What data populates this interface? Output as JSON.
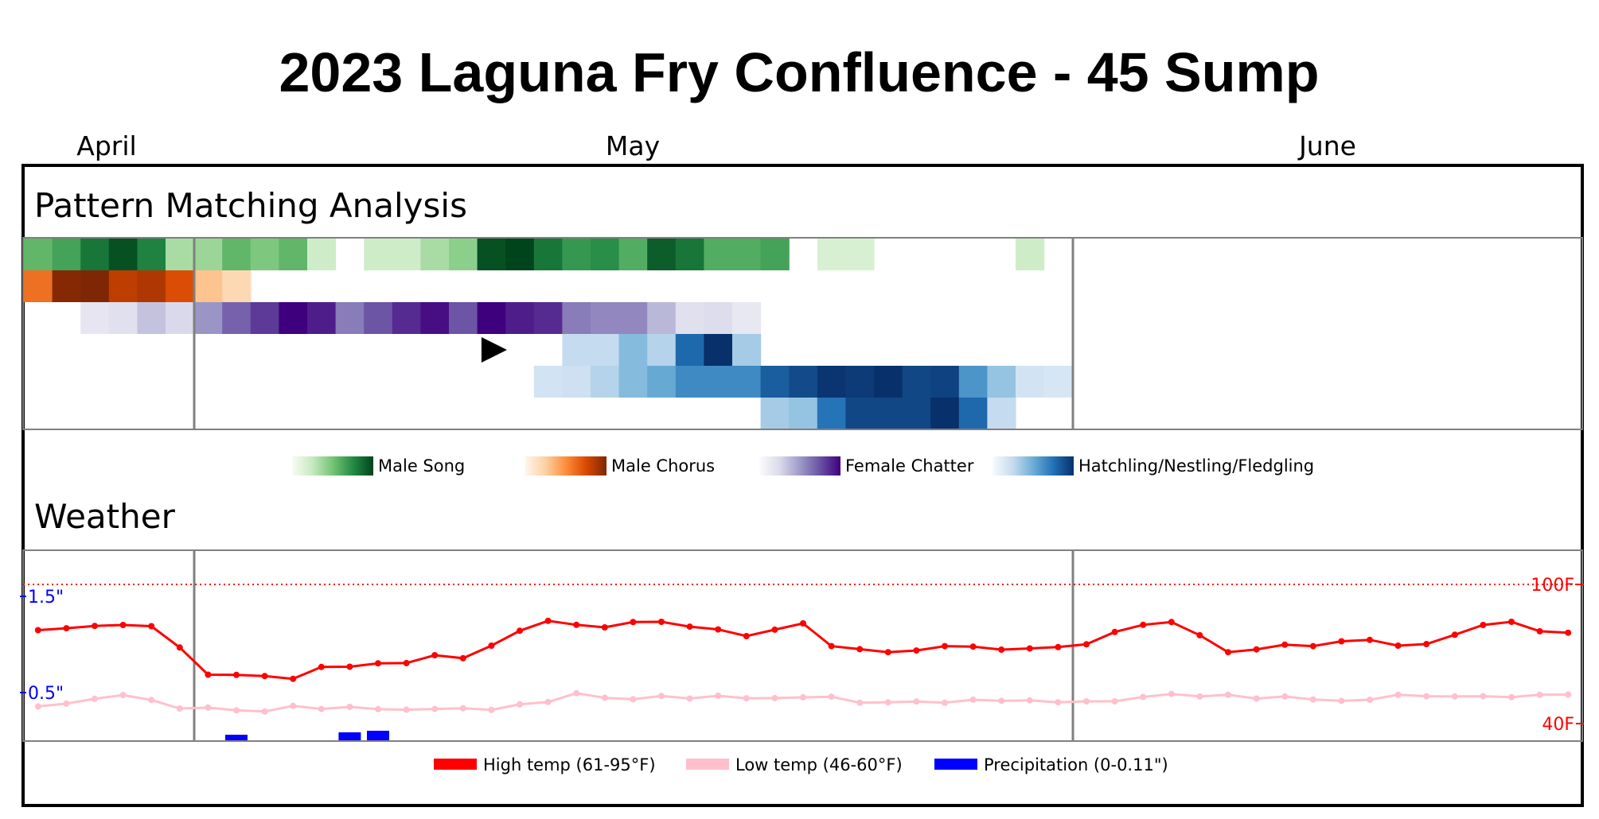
{
  "chart_data": {
    "type": "heatmap",
    "title": "2023 Laguna Fry Confluence - 45 Sump",
    "months": [
      "April",
      "May",
      "June"
    ],
    "x_dates": [
      "2023-04-25",
      "2023-06-18"
    ],
    "pattern_section_title": "Pattern Matching Analysis",
    "pattern_series": [
      {
        "name": "Male Song",
        "colormap": "Greens",
        "cmap": [
          "#f7fcf5",
          "#c7e9c0",
          "#74c476",
          "#238b45",
          "#00441b"
        ],
        "values": [
          0.5,
          0.6,
          0.8,
          0.95,
          0.75,
          0.25,
          0.3,
          0.5,
          0.4,
          0.5,
          0.1,
          0,
          0.1,
          0.1,
          0.25,
          0.35,
          0.95,
          1,
          0.8,
          0.65,
          0.7,
          0.55,
          0.9,
          0.8,
          0.55,
          0.55,
          0.6,
          0,
          0.05,
          0.05,
          0,
          0,
          0,
          0,
          0,
          0.1,
          0,
          0,
          0,
          0,
          0,
          0,
          0,
          0,
          0,
          0,
          0,
          0,
          0,
          0,
          0,
          0,
          0,
          0,
          0
        ]
      },
      {
        "name": "Male Chorus",
        "colormap": "Oranges",
        "cmap": [
          "#fff5eb",
          "#fdd0a2",
          "#fd8d3c",
          "#d94801",
          "#7f2704"
        ],
        "values": [
          0.55,
          0.98,
          1,
          0.8,
          0.85,
          0.7,
          0.2,
          0.08,
          0,
          0,
          0,
          0,
          0,
          0,
          0,
          0,
          0,
          0,
          0,
          0,
          0,
          0,
          0,
          0,
          0,
          0,
          0,
          0,
          0,
          0,
          0,
          0,
          0,
          0,
          0,
          0,
          0,
          0,
          0,
          0,
          0,
          0,
          0,
          0,
          0,
          0,
          0,
          0,
          0,
          0,
          0,
          0,
          0,
          0,
          0
        ]
      },
      {
        "name": "Female Chatter",
        "colormap": "Purples",
        "cmap": [
          "#fcfbfd",
          "#dadaeb",
          "#9e9ac8",
          "#6a51a3",
          "#3f007d"
        ],
        "values": [
          0,
          0,
          0.05,
          0.1,
          0.25,
          0.15,
          0.45,
          0.65,
          0.8,
          1,
          0.9,
          0.55,
          0.7,
          0.85,
          0.95,
          0.7,
          1,
          0.9,
          0.85,
          0.55,
          0.5,
          0.5,
          0.3,
          0.1,
          0.12,
          0.03,
          0,
          0,
          0,
          0,
          0,
          0,
          0,
          0,
          0,
          0,
          0,
          0,
          0,
          0,
          0,
          0,
          0,
          0,
          0,
          0,
          0,
          0,
          0,
          0,
          0,
          0,
          0,
          0,
          0
        ]
      },
      {
        "name": "Hatchling/Nestling/Fledgling",
        "colormap": "Blues",
        "cmap": [
          "#f7fbff",
          "#c6dbef",
          "#6baed6",
          "#2171b5",
          "#08306b"
        ],
        "rows": [
          [
            0,
            0,
            0,
            0,
            0,
            0,
            0,
            0,
            0,
            0,
            0,
            0,
            0,
            0,
            0,
            0,
            0,
            0,
            0,
            0.15,
            0.15,
            0.35,
            0.2,
            0.75,
            1,
            0.25,
            0,
            0,
            0,
            0,
            0,
            0,
            0,
            0,
            0,
            0,
            0,
            0,
            0,
            0,
            0,
            0,
            0,
            0,
            0,
            0,
            0,
            0,
            0,
            0,
            0,
            0,
            0,
            0,
            0
          ],
          [
            0,
            0,
            0,
            0,
            0,
            0,
            0,
            0,
            0,
            0,
            0,
            0,
            0,
            0,
            0,
            0,
            0,
            0,
            0.08,
            0.1,
            0.2,
            0.35,
            0.45,
            0.6,
            0.6,
            0.6,
            0.8,
            0.88,
            0.98,
            0.95,
            1,
            0.9,
            0.92,
            0.55,
            0.3,
            0.08,
            0.05,
            0,
            0,
            0,
            0,
            0,
            0,
            0,
            0,
            0,
            0,
            0,
            0,
            0,
            0,
            0,
            0,
            0,
            0
          ],
          [
            0,
            0,
            0,
            0,
            0,
            0,
            0,
            0,
            0,
            0,
            0,
            0,
            0,
            0,
            0,
            0,
            0,
            0,
            0,
            0,
            0,
            0,
            0,
            0,
            0,
            0,
            0.25,
            0.3,
            0.7,
            0.9,
            0.9,
            0.9,
            1,
            0.75,
            0.15,
            0,
            0,
            0,
            0,
            0,
            0,
            0,
            0,
            0,
            0,
            0,
            0,
            0,
            0,
            0,
            0,
            0,
            0,
            0,
            0
          ]
        ]
      }
    ],
    "marker_day_index": 16,
    "weather_section_title": "Weather",
    "temp_ylim": [
      40,
      100
    ],
    "temp_labels": [
      "100F",
      "40F"
    ],
    "precip_labels": [
      "1.5\"",
      "0.5\""
    ],
    "precip_reference": [
      1.5,
      0.5
    ],
    "high_temp": [
      80.3,
      81.1,
      82.1,
      82.5,
      82.0,
      72.8,
      61.1,
      61.0,
      60.5,
      59.3,
      64.4,
      64.5,
      66.0,
      66.1,
      69.5,
      68.2,
      73.6,
      80.0,
      84.3,
      82.6,
      81.5,
      83.8,
      83.9,
      81.8,
      80.6,
      77.7,
      80.5,
      83.2,
      73.4,
      72.1,
      70.8,
      71.5,
      73.4,
      73.2,
      71.9,
      72.4,
      73.0,
      74.2,
      79.5,
      82.6,
      83.8,
      78.1,
      70.8,
      72.0,
      74.0,
      73.4,
      75.5,
      76.1,
      73.6,
      74.3,
      78.3,
      82.5,
      83.9,
      79.8,
      79.2
    ],
    "low_temp": [
      47.4,
      48.6,
      50.7,
      52.3,
      50.2,
      46.5,
      46.9,
      45.7,
      45.2,
      47.6,
      46.3,
      47.2,
      46.2,
      46.0,
      46.3,
      46.6,
      45.9,
      48.3,
      49.3,
      53.1,
      51.1,
      50.5,
      51.9,
      50.8,
      52.0,
      50.9,
      51.0,
      51.3,
      51.6,
      49.0,
      49.2,
      49.5,
      49.0,
      50.3,
      49.8,
      50.0,
      49.2,
      49.6,
      49.6,
      51.5,
      52.8,
      51.7,
      52.4,
      50.8,
      51.7,
      50.4,
      49.8,
      50.3,
      52.4,
      51.8,
      51.7,
      51.8,
      51.4,
      52.4,
      52.5
    ],
    "precip": [
      0,
      0,
      0,
      0,
      0,
      0,
      0,
      0.035,
      0,
      0,
      0,
      0.05,
      0.06,
      0,
      0,
      0,
      0,
      0,
      0,
      0,
      0,
      0,
      0,
      0,
      0,
      0,
      0,
      0,
      0,
      0,
      0,
      0,
      0,
      0,
      0,
      0,
      0,
      0,
      0,
      0,
      0,
      0,
      0,
      0,
      0,
      0,
      0,
      0,
      0,
      0,
      0,
      0,
      0,
      0,
      0
    ],
    "weather_legend": [
      {
        "name": "High temp (61-95°F)",
        "color": "#ff0000"
      },
      {
        "name": "Low temp (46-60°F)",
        "color": "#ffc0cb"
      },
      {
        "name": "Precipitation (0-0.11\")",
        "color": "#0000ff"
      }
    ],
    "grid": false
  }
}
